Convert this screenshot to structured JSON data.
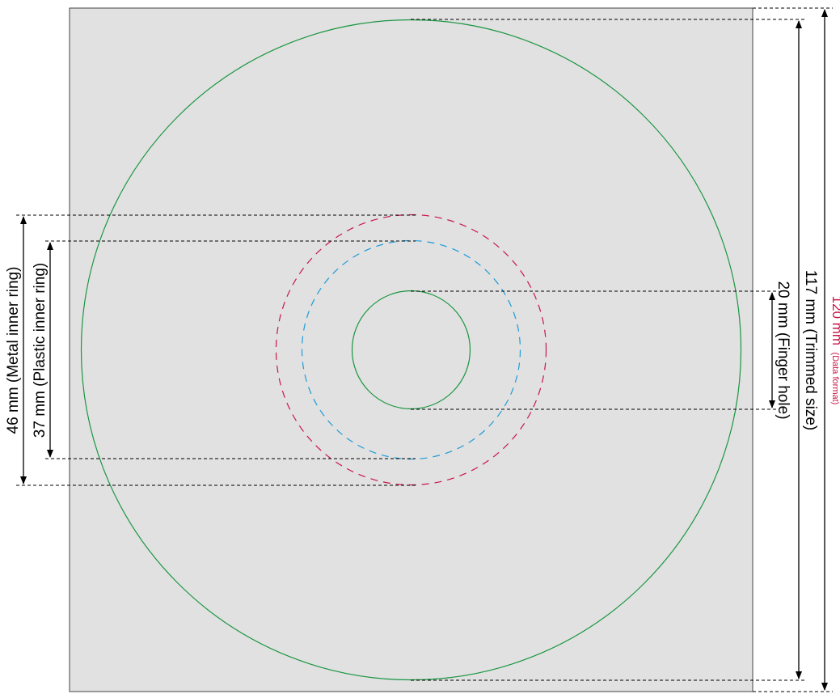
{
  "dimensions": {
    "data_format": {
      "value": "120 mm",
      "note": "(Data format)"
    },
    "trimmed_size": {
      "value": "117 mm (Trimmed size)"
    },
    "finger_hole": {
      "value": "20 mm (Finger hole)"
    },
    "metal_inner_ring": {
      "value": "46 mm (Metal inner ring)"
    },
    "plastic_inner_ring": {
      "value": "37 mm (Plastic inner ring)"
    }
  },
  "colors": {
    "background_square": "#e1e1e1",
    "disc_outline": "#1a9641",
    "metal_ring": "#c8174a",
    "plastic_ring": "#1f9bd7",
    "data_format_label": "#c8174a",
    "guides": "#000000"
  }
}
